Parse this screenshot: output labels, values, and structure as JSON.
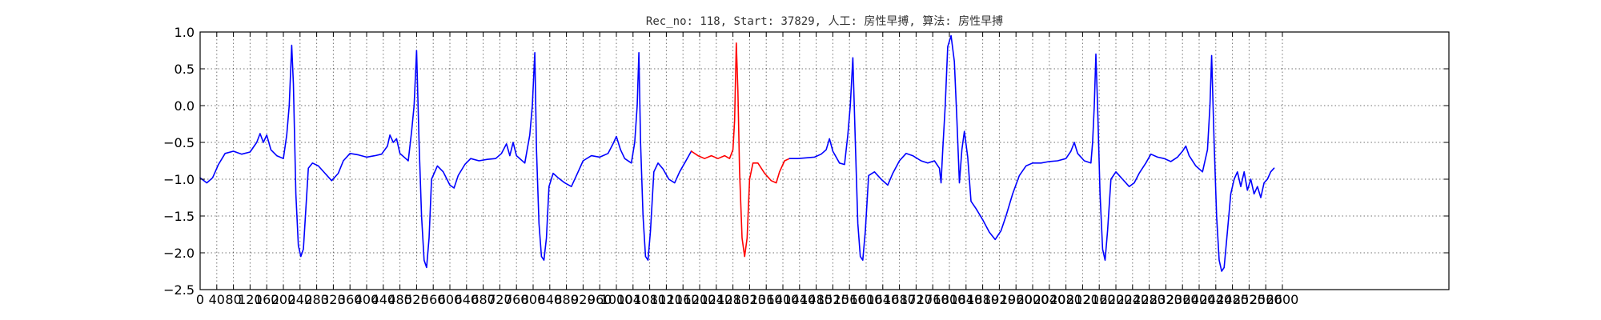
{
  "chart_data": {
    "type": "line",
    "title": "Rec_no: 118, Start: 37829, 人工: 房性早搏, 算法: 房性早搏",
    "xlabel": "",
    "ylabel": "",
    "xlim": [
      0,
      1500
    ],
    "ylim": [
      -2.5,
      1.0
    ],
    "grid": true,
    "x_ticks": [
      0,
      20,
      40,
      60,
      80,
      100,
      120,
      140,
      160,
      180,
      200,
      220,
      240,
      260,
      280,
      300,
      320,
      340,
      360,
      380,
      400,
      420,
      440,
      460,
      480,
      500,
      520,
      540,
      560,
      580,
      600,
      620,
      640,
      660,
      680,
      700,
      720,
      740,
      760,
      780,
      800,
      820,
      840,
      860,
      880,
      900,
      920,
      940,
      960,
      980,
      1000,
      1020,
      1040,
      1060,
      1080,
      1100,
      1120,
      1140,
      1160,
      1180,
      1200,
      1220,
      1240,
      1260,
      1280,
      1300
    ],
    "x_tick_labels": [
      "0",
      "40",
      "80",
      "120",
      "160",
      "200",
      "240",
      "280",
      "320",
      "360",
      "400",
      "440",
      "480",
      "520",
      "560",
      "600",
      "640",
      "680",
      "720",
      "760",
      "800",
      "840",
      "880",
      "920",
      "960",
      "1000",
      "1040",
      "1080",
      "1120",
      "1160",
      "1200",
      "1240",
      "1280",
      "1320",
      "1360",
      "1400",
      "1440",
      "1480",
      "1520",
      "1560",
      "1600",
      "1640",
      "1680",
      "1720",
      "1760",
      "1800",
      "1840",
      "1880",
      "1920",
      "1960",
      "2000",
      "2040",
      "2080",
      "2120",
      "2160",
      "2200",
      "2240",
      "2280",
      "2320",
      "2360",
      "2400",
      "2440",
      "2480",
      "2520",
      "2560",
      "2600"
    ],
    "y_ticks": [
      1.0,
      0.5,
      0.0,
      -0.5,
      -1.0,
      -1.5,
      -2.0,
      -2.5
    ],
    "y_tick_labels": [
      "1.0",
      "0.5",
      "0.0",
      "−0.5",
      "−1.0",
      "−1.5",
      "−2.0",
      "−2.5"
    ],
    "colors": {
      "normal": "#0000ff",
      "highlight": "#ff0000"
    },
    "series": [
      {
        "color": "#0000ff",
        "points": [
          [
            0,
            -0.98
          ],
          [
            8,
            -1.05
          ],
          [
            15,
            -0.98
          ],
          [
            22,
            -0.8
          ],
          [
            30,
            -0.65
          ],
          [
            40,
            -0.62
          ],
          [
            50,
            -0.66
          ],
          [
            60,
            -0.63
          ],
          [
            68,
            -0.5
          ],
          [
            72,
            -0.38
          ],
          [
            76,
            -0.5
          ],
          [
            80,
            -0.4
          ],
          [
            85,
            -0.6
          ],
          [
            92,
            -0.68
          ],
          [
            100,
            -0.72
          ],
          [
            104,
            -0.4
          ],
          [
            107,
            0.0
          ],
          [
            110,
            0.82
          ],
          [
            112,
            0.3
          ],
          [
            115,
            -1.2
          ],
          [
            118,
            -1.9
          ],
          [
            121,
            -2.05
          ],
          [
            124,
            -1.95
          ],
          [
            127,
            -1.4
          ],
          [
            130,
            -0.85
          ],
          [
            135,
            -0.78
          ],
          [
            142,
            -0.82
          ],
          [
            150,
            -0.92
          ],
          [
            158,
            -1.02
          ],
          [
            166,
            -0.92
          ],
          [
            172,
            -0.75
          ],
          [
            180,
            -0.65
          ],
          [
            190,
            -0.67
          ],
          [
            200,
            -0.7
          ],
          [
            210,
            -0.68
          ],
          [
            218,
            -0.66
          ],
          [
            225,
            -0.55
          ],
          [
            228,
            -0.4
          ],
          [
            232,
            -0.5
          ],
          [
            236,
            -0.45
          ],
          [
            240,
            -0.65
          ],
          [
            250,
            -0.75
          ],
          [
            254,
            -0.35
          ],
          [
            257,
            0.0
          ],
          [
            260,
            0.75
          ],
          [
            263,
            -0.5
          ],
          [
            266,
            -1.5
          ],
          [
            269,
            -2.1
          ],
          [
            272,
            -2.2
          ],
          [
            275,
            -1.8
          ],
          [
            278,
            -1.0
          ],
          [
            285,
            -0.82
          ],
          [
            292,
            -0.9
          ],
          [
            300,
            -1.08
          ],
          [
            305,
            -1.12
          ],
          [
            310,
            -0.95
          ],
          [
            318,
            -0.8
          ],
          [
            325,
            -0.72
          ],
          [
            335,
            -0.75
          ],
          [
            345,
            -0.73
          ],
          [
            355,
            -0.72
          ],
          [
            362,
            -0.65
          ],
          [
            368,
            -0.52
          ],
          [
            372,
            -0.68
          ],
          [
            376,
            -0.5
          ],
          [
            380,
            -0.68
          ],
          [
            390,
            -0.78
          ],
          [
            396,
            -0.4
          ],
          [
            399,
            0.0
          ],
          [
            402,
            0.72
          ],
          [
            404,
            -0.6
          ],
          [
            407,
            -1.6
          ],
          [
            410,
            -2.05
          ],
          [
            413,
            -2.1
          ],
          [
            416,
            -1.8
          ],
          [
            419,
            -1.1
          ],
          [
            424,
            -0.92
          ],
          [
            430,
            -0.98
          ],
          [
            438,
            -1.05
          ],
          [
            446,
            -1.1
          ],
          [
            454,
            -0.9
          ],
          [
            460,
            -0.75
          ],
          [
            470,
            -0.68
          ],
          [
            480,
            -0.7
          ],
          [
            490,
            -0.65
          ],
          [
            496,
            -0.52
          ],
          [
            500,
            -0.42
          ],
          [
            505,
            -0.6
          ],
          [
            510,
            -0.72
          ],
          [
            518,
            -0.78
          ],
          [
            522,
            -0.5
          ],
          [
            525,
            0.0
          ],
          [
            527,
            0.72
          ],
          [
            529,
            -0.5
          ],
          [
            532,
            -1.5
          ],
          [
            535,
            -2.05
          ],
          [
            538,
            -2.1
          ],
          [
            541,
            -1.7
          ],
          [
            545,
            -0.9
          ],
          [
            550,
            -0.78
          ],
          [
            556,
            -0.86
          ],
          [
            563,
            -1.0
          ],
          [
            570,
            -1.05
          ],
          [
            576,
            -0.9
          ],
          [
            582,
            -0.78
          ],
          [
            590,
            -0.62
          ]
        ]
      },
      {
        "color": "#ff0000",
        "points": [
          [
            590,
            -0.62
          ],
          [
            598,
            -0.68
          ],
          [
            606,
            -0.72
          ],
          [
            614,
            -0.68
          ],
          [
            622,
            -0.72
          ],
          [
            630,
            -0.68
          ],
          [
            636,
            -0.72
          ],
          [
            640,
            -0.6
          ],
          [
            642,
            -0.2
          ],
          [
            644,
            0.85
          ],
          [
            646,
            0.2
          ],
          [
            648,
            -0.9
          ],
          [
            651,
            -1.8
          ],
          [
            654,
            -2.05
          ],
          [
            657,
            -1.8
          ],
          [
            660,
            -1.0
          ],
          [
            664,
            -0.78
          ],
          [
            670,
            -0.78
          ],
          [
            678,
            -0.92
          ],
          [
            686,
            -1.02
          ],
          [
            692,
            -1.05
          ],
          [
            696,
            -0.9
          ],
          [
            702,
            -0.75
          ],
          [
            708,
            -0.72
          ]
        ]
      },
      {
        "color": "#0000ff",
        "points": [
          [
            708,
            -0.72
          ],
          [
            718,
            -0.72
          ],
          [
            728,
            -0.71
          ],
          [
            738,
            -0.7
          ],
          [
            746,
            -0.66
          ],
          [
            752,
            -0.6
          ],
          [
            756,
            -0.45
          ],
          [
            760,
            -0.62
          ],
          [
            768,
            -0.78
          ],
          [
            774,
            -0.8
          ],
          [
            778,
            -0.4
          ],
          [
            781,
            0.0
          ],
          [
            784,
            0.65
          ],
          [
            787,
            -0.5
          ],
          [
            790,
            -1.6
          ],
          [
            793,
            -2.05
          ],
          [
            796,
            -2.1
          ],
          [
            799,
            -1.7
          ],
          [
            803,
            -0.95
          ],
          [
            810,
            -0.9
          ],
          [
            818,
            -1.0
          ],
          [
            826,
            -1.08
          ],
          [
            832,
            -0.92
          ],
          [
            840,
            -0.75
          ],
          [
            848,
            -0.65
          ],
          [
            856,
            -0.68
          ],
          [
            866,
            -0.75
          ],
          [
            874,
            -0.78
          ],
          [
            882,
            -0.75
          ],
          [
            888,
            -0.85
          ],
          [
            890,
            -1.05
          ],
          [
            892,
            -0.6
          ],
          [
            895,
            0.0
          ],
          [
            898,
            0.8
          ],
          [
            902,
            0.95
          ],
          [
            906,
            0.6
          ],
          [
            909,
            -0.2
          ],
          [
            912,
            -1.05
          ],
          [
            915,
            -0.6
          ],
          [
            918,
            -0.35
          ],
          [
            922,
            -0.7
          ],
          [
            926,
            -1.3
          ],
          [
            932,
            -1.4
          ],
          [
            940,
            -1.55
          ],
          [
            948,
            -1.72
          ],
          [
            955,
            -1.82
          ],
          [
            962,
            -1.7
          ],
          [
            968,
            -1.5
          ],
          [
            976,
            -1.2
          ],
          [
            984,
            -0.95
          ],
          [
            992,
            -0.82
          ],
          [
            1000,
            -0.78
          ],
          [
            1010,
            -0.78
          ],
          [
            1020,
            -0.76
          ],
          [
            1030,
            -0.75
          ],
          [
            1040,
            -0.72
          ],
          [
            1046,
            -0.62
          ],
          [
            1050,
            -0.5
          ],
          [
            1054,
            -0.65
          ],
          [
            1062,
            -0.75
          ],
          [
            1070,
            -0.78
          ],
          [
            1072,
            -0.5
          ],
          [
            1074,
            0.0
          ],
          [
            1076,
            0.7
          ],
          [
            1078,
            0.0
          ],
          [
            1081,
            -1.2
          ],
          [
            1084,
            -1.95
          ],
          [
            1087,
            -2.1
          ],
          [
            1090,
            -1.7
          ],
          [
            1094,
            -1.0
          ],
          [
            1100,
            -0.9
          ],
          [
            1108,
            -1.0
          ],
          [
            1116,
            -1.1
          ],
          [
            1122,
            -1.05
          ],
          [
            1128,
            -0.92
          ],
          [
            1136,
            -0.78
          ],
          [
            1142,
            -0.66
          ],
          [
            1150,
            -0.7
          ],
          [
            1158,
            -0.72
          ],
          [
            1166,
            -0.76
          ],
          [
            1174,
            -0.7
          ],
          [
            1180,
            -0.62
          ],
          [
            1184,
            -0.55
          ],
          [
            1188,
            -0.68
          ],
          [
            1196,
            -0.82
          ],
          [
            1204,
            -0.9
          ],
          [
            1210,
            -0.6
          ],
          [
            1213,
            0.0
          ],
          [
            1215,
            0.68
          ],
          [
            1218,
            -0.5
          ],
          [
            1221,
            -1.5
          ],
          [
            1224,
            -2.1
          ],
          [
            1227,
            -2.25
          ],
          [
            1230,
            -2.2
          ],
          [
            1234,
            -1.7
          ],
          [
            1238,
            -1.2
          ],
          [
            1242,
            -1.0
          ],
          [
            1246,
            -0.9
          ],
          [
            1250,
            -1.1
          ],
          [
            1254,
            -0.9
          ],
          [
            1258,
            -1.15
          ],
          [
            1262,
            -1.0
          ],
          [
            1266,
            -1.2
          ],
          [
            1270,
            -1.1
          ],
          [
            1274,
            -1.25
          ],
          [
            1278,
            -1.05
          ],
          [
            1282,
            -1.0
          ],
          [
            1286,
            -0.9
          ],
          [
            1290,
            -0.85
          ]
        ]
      }
    ]
  }
}
